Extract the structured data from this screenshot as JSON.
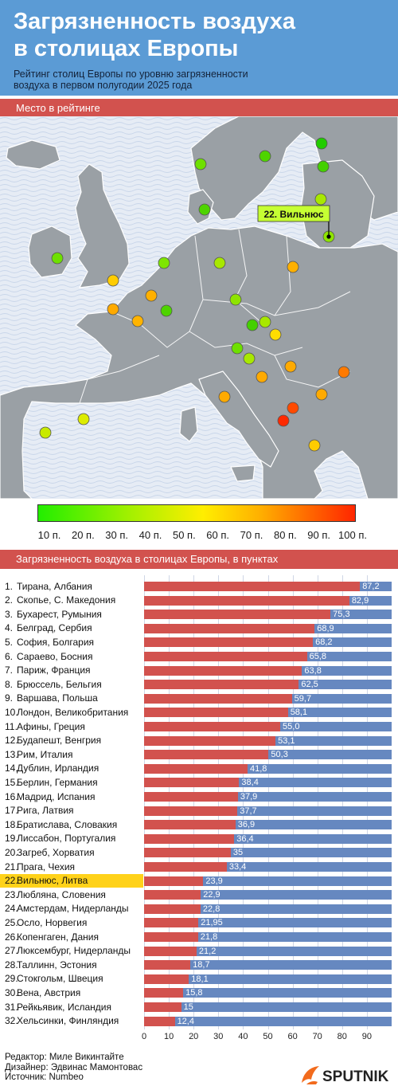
{
  "header": {
    "title_line1": "Загрязненность воздуха",
    "title_line2": "в столицах Европы",
    "subtitle_line1": "Рейтинг столиц Европы по уровню загрязненности",
    "subtitle_line2": "воздуха в первом полугодии 2025 года"
  },
  "map_section": {
    "heading": "Место в рейтинге",
    "highlight_label": "22. Вильнюс",
    "scale_labels": [
      "10 п.",
      "20 п.",
      "30 п.",
      "40 п.",
      "50 п.",
      "60 п.",
      "70 п.",
      "80 п.",
      "90 п.",
      "100 п."
    ]
  },
  "chart_section": {
    "heading": "Загрязненность воздуха в столицах Европы, в пунктах"
  },
  "chart_data": {
    "type": "bar",
    "orientation": "horizontal",
    "xlim": [
      0,
      100
    ],
    "x_ticks": [
      "0",
      "10",
      "20",
      "30",
      "40",
      "50",
      "60",
      "70",
      "80",
      "90"
    ],
    "highlight_index": 21,
    "highlight_color": "#ffd21a",
    "bar_color": "#d2524e",
    "background_bar_color": "#6688c0",
    "rows": [
      {
        "rank": "1.",
        "city": "Тирана, Албания",
        "value": 87.2,
        "label": "87,2"
      },
      {
        "rank": "2.",
        "city": "Скопье, С. Македония",
        "value": 82.9,
        "label": "82,9"
      },
      {
        "rank": "3.",
        "city": "Бухарест, Румыния",
        "value": 75.3,
        "label": "75,3"
      },
      {
        "rank": "4.",
        "city": "Белград, Сербия",
        "value": 68.9,
        "label": "68,9"
      },
      {
        "rank": "5.",
        "city": "София, Болгария",
        "value": 68.2,
        "label": "68,2"
      },
      {
        "rank": "6.",
        "city": "Сараево, Босния",
        "value": 65.8,
        "label": "65,8"
      },
      {
        "rank": "7.",
        "city": "Париж, Франция",
        "value": 63.8,
        "label": "63,8"
      },
      {
        "rank": "8.",
        "city": "Брюссель, Бельгия",
        "value": 62.5,
        "label": "62,5"
      },
      {
        "rank": "9.",
        "city": "Варшава, Польша",
        "value": 59.7,
        "label": "59,7"
      },
      {
        "rank": "10.",
        "city": "Лондон, Великобритания",
        "value": 58.1,
        "label": "58,1"
      },
      {
        "rank": "11.",
        "city": "Афины, Греция",
        "value": 55.0,
        "label": "55,0"
      },
      {
        "rank": "12.",
        "city": "Будапешт, Венгрия",
        "value": 53.1,
        "label": "53,1"
      },
      {
        "rank": "13.",
        "city": "Рим, Италия",
        "value": 50.3,
        "label": "50,3"
      },
      {
        "rank": "14.",
        "city": "Дублин, Ирландия",
        "value": 41.8,
        "label": "41,8"
      },
      {
        "rank": "15.",
        "city": "Берлин, Германия",
        "value": 38.4,
        "label": "38,4"
      },
      {
        "rank": "16.",
        "city": "Мадрид, Испания",
        "value": 37.9,
        "label": "37,9"
      },
      {
        "rank": "17.",
        "city": "Рига, Латвия",
        "value": 37.7,
        "label": "37,7"
      },
      {
        "rank": "18.",
        "city": "Братислава, Словакия",
        "value": 36.9,
        "label": "36,9"
      },
      {
        "rank": "19.",
        "city": "Лиссабон, Португалия",
        "value": 36.4,
        "label": "36,4"
      },
      {
        "rank": "20.",
        "city": "Загреб, Хорватия",
        "value": 35,
        "label": "35"
      },
      {
        "rank": "21.",
        "city": "Прага, Чехия",
        "value": 33.4,
        "label": "33,4"
      },
      {
        "rank": "22.",
        "city": "Вильнюс, Литва",
        "value": 23.9,
        "label": "23,9"
      },
      {
        "rank": "23.",
        "city": "Любляна, Словения",
        "value": 22.9,
        "label": "22,9"
      },
      {
        "rank": "24.",
        "city": "Амстердам, Нидерланды",
        "value": 22.8,
        "label": "22,8"
      },
      {
        "rank": "25.",
        "city": "Осло, Норвегия",
        "value": 21.95,
        "label": "21,95"
      },
      {
        "rank": "26.",
        "city": "Копенгаген, Дания",
        "value": 21.8,
        "label": "21,8"
      },
      {
        "rank": "27.",
        "city": "Люксембург, Нидерланды",
        "value": 21.2,
        "label": "21,2"
      },
      {
        "rank": "28.",
        "city": "Таллинн, Эстония",
        "value": 18.7,
        "label": "18,7"
      },
      {
        "rank": "29.",
        "city": "Стокгольм, Швеция",
        "value": 18.1,
        "label": "18,1"
      },
      {
        "rank": "30.",
        "city": "Вена, Австрия",
        "value": 15.8,
        "label": "15,8"
      },
      {
        "rank": "31.",
        "city": "Рейкьявик, Исландия",
        "value": 15,
        "label": "15"
      },
      {
        "rank": "32.",
        "city": "Хельсинки, Финляндия",
        "value": 12.4,
        "label": "12,4"
      }
    ]
  },
  "credits": {
    "editor": "Редактор: Миле Викинтайте",
    "designer": "Дизайнер: Эдвинас Мамонтовас",
    "source": "Источник: Numbeo"
  },
  "logo": {
    "text": "SPUTNIK",
    "color": "#f26b1d"
  }
}
